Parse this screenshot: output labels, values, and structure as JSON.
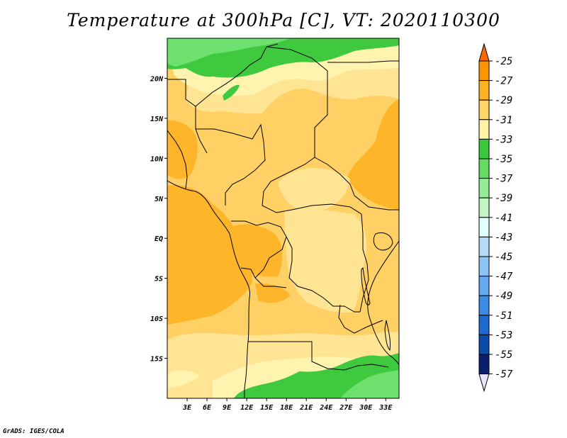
{
  "title": "Temperature at 300hPa [C], VT: 2020110300",
  "credit": "GrADS: IGES/COLA",
  "map": {
    "lon_range": [
      0,
      35
    ],
    "lat_range": [
      -20,
      25
    ],
    "x_ticks": [
      "3E",
      "6E",
      "9E",
      "12E",
      "15E",
      "18E",
      "21E",
      "24E",
      "27E",
      "30E",
      "33E"
    ],
    "y_ticks": [
      "20N",
      "15N",
      "10N",
      "5N",
      "EQ",
      "5S",
      "10S",
      "15S"
    ]
  },
  "colorbar": {
    "levels": [
      "-25",
      "-27",
      "-29",
      "-31",
      "-33",
      "-35",
      "-37",
      "-39",
      "-41",
      "-43",
      "-45",
      "-47",
      "-49",
      "-51",
      "-53",
      "-55",
      "-57"
    ],
    "colors": [
      "#ff6a00",
      "#ff9400",
      "#ffb21f",
      "#ffd565",
      "#fff3a8",
      "#3cc83c",
      "#64dc64",
      "#96ec96",
      "#c2f6c2",
      "#e0ffff",
      "#b4dcf8",
      "#8cc4f4",
      "#64a8ee",
      "#3c8ce6",
      "#1e6ad2",
      "#0a4aa8",
      "#08206e",
      "#e6e6ff"
    ]
  },
  "field_colors": {
    "c29": "#ffb52a",
    "c31": "#ffd164",
    "c33": "#ffe493",
    "c35": "#fff3b0",
    "c37": "#3fc93f",
    "c39": "#6de06d"
  }
}
